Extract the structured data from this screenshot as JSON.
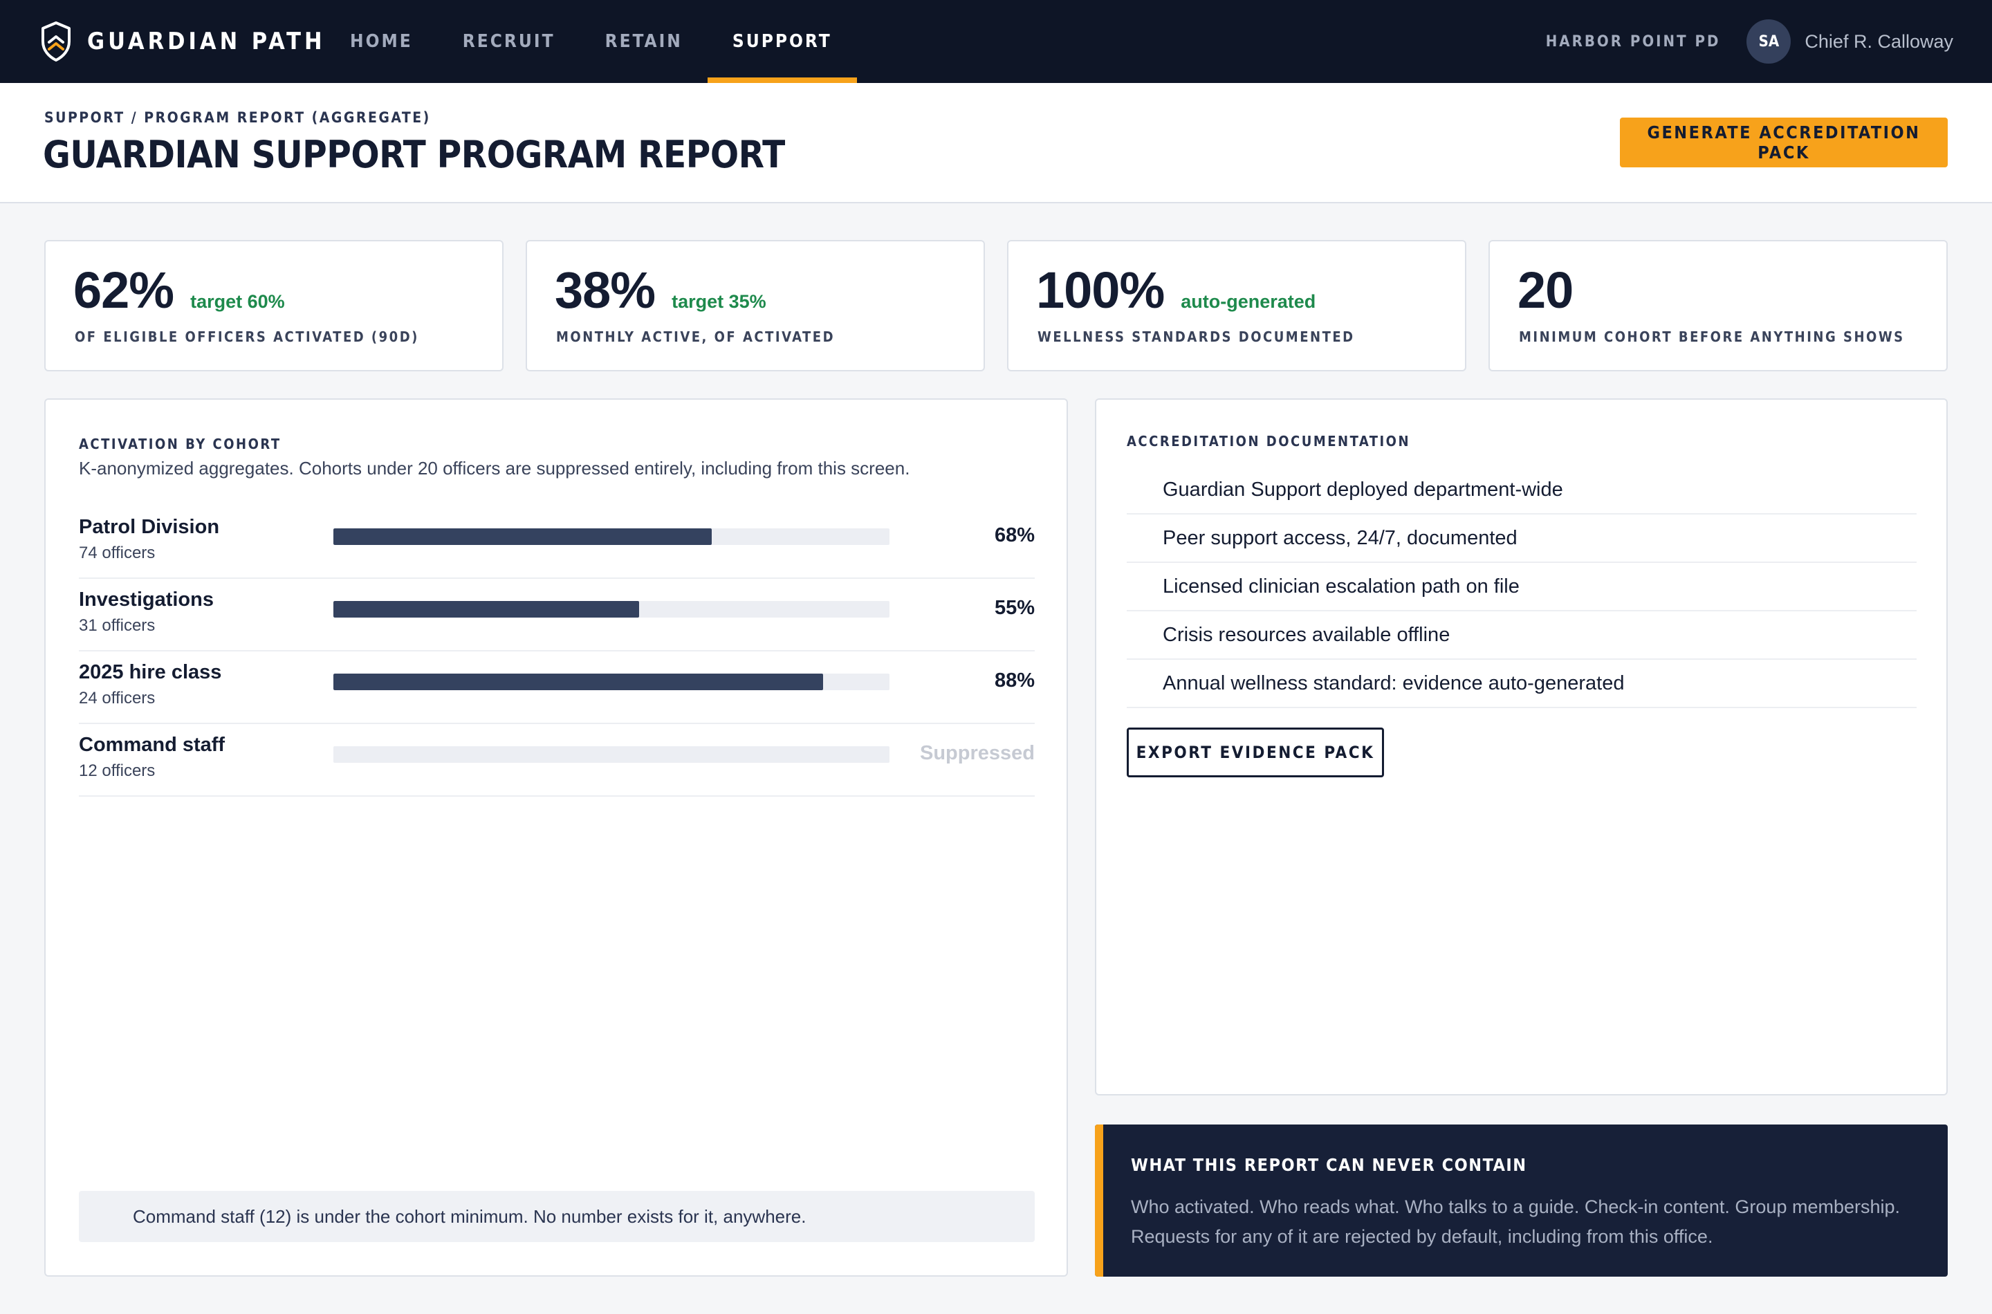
{
  "app": {
    "brand": "GUARDIAN PATH",
    "nav": [
      {
        "label": "HOME",
        "active": false
      },
      {
        "label": "RECRUIT",
        "active": false
      },
      {
        "label": "RETAIN",
        "active": false
      },
      {
        "label": "SUPPORT",
        "active": true
      }
    ],
    "department": "HARBOR POINT PD",
    "user": {
      "initials": "SA",
      "name": "Chief R. Calloway"
    }
  },
  "header": {
    "breadcrumb": "SUPPORT / PROGRAM REPORT (AGGREGATE)",
    "title": "GUARDIAN SUPPORT PROGRAM REPORT",
    "primary_action": "GENERATE ACCREDITATION PACK"
  },
  "stats": [
    {
      "value": "62%",
      "note": "target 60%",
      "label": "OF ELIGIBLE OFFICERS ACTIVATED (90D)"
    },
    {
      "value": "38%",
      "note": "target 35%",
      "label": "MONTHLY ACTIVE, OF ACTIVATED"
    },
    {
      "value": "100%",
      "note": "auto-generated",
      "label": "WELLNESS STANDARDS DOCUMENTED"
    },
    {
      "value": "20",
      "note": "",
      "label": "MINIMUM COHORT BEFORE ANYTHING SHOWS"
    }
  ],
  "cohorts": {
    "eyebrow": "ACTIVATION BY COHORT",
    "subtitle": "K-anonymized aggregates. Cohorts under 20 officers are suppressed entirely, including from this screen.",
    "rows": [
      {
        "name": "Patrol Division",
        "count": "74 officers",
        "activation": 0.68,
        "pct": "68%",
        "suppressed": false
      },
      {
        "name": "Investigations",
        "count": "31 officers",
        "activation": 0.55,
        "pct": "55%",
        "suppressed": false
      },
      {
        "name": "2025 hire class",
        "count": "24 officers",
        "activation": 0.88,
        "pct": "88%",
        "suppressed": false
      },
      {
        "name": "Command staff",
        "count": "12 officers",
        "activation": 0,
        "pct": "Suppressed",
        "suppressed": true
      }
    ],
    "notice": "Command staff (12) is under the cohort minimum. No number exists for it, anywhere."
  },
  "accreditation": {
    "eyebrow": "ACCREDITATION DOCUMENTATION",
    "items": [
      "Guardian Support deployed department-wide",
      "Peer support access, 24/7, documented",
      "Licensed clinician escalation path on file",
      "Crisis resources available offline",
      "Annual wellness standard: evidence auto-generated"
    ],
    "export_label": "EXPORT EVIDENCE PACK"
  },
  "privacy": {
    "title": "WHAT THIS REPORT CAN NEVER CONTAIN",
    "body": "Who activated. Who reads what. Who talks to a guide. Check-in content. Group membership. Requests for any of it are rejected by default, including from this office."
  },
  "colors": {
    "nav_bg": "#0e1526",
    "accent": "#f7a21b",
    "bar_fill": "#34425f",
    "positive": "#1e8a4c",
    "card_dark": "#172038"
  }
}
